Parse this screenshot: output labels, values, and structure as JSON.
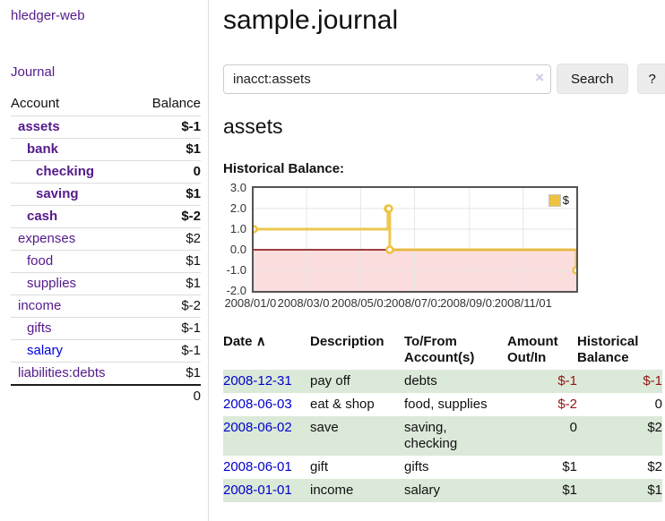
{
  "sidebar": {
    "app_title": "hledger-web",
    "journal_label": "Journal",
    "accounts_table": {
      "headers": [
        "Account",
        "Balance"
      ],
      "rows": [
        {
          "account": "assets",
          "balance": "$-1",
          "indent": 1,
          "bold": true,
          "tone": "neg"
        },
        {
          "account": "bank",
          "balance": "$1",
          "indent": 2,
          "bold": true,
          "tone": ""
        },
        {
          "account": "checking",
          "balance": "0",
          "indent": 3,
          "bold": true,
          "tone": ""
        },
        {
          "account": "saving",
          "balance": "$1",
          "indent": 3,
          "bold": true,
          "tone": ""
        },
        {
          "account": "cash",
          "balance": "$-2",
          "indent": 2,
          "bold": true,
          "tone": "neg"
        },
        {
          "account": "expenses",
          "balance": "$2",
          "indent": 1,
          "bold": false,
          "tone": ""
        },
        {
          "account": "food",
          "balance": "$1",
          "indent": 2,
          "bold": false,
          "tone": ""
        },
        {
          "account": "supplies",
          "balance": "$1",
          "indent": 2,
          "bold": false,
          "tone": ""
        },
        {
          "account": "income",
          "balance": "$-2",
          "indent": 1,
          "bold": false,
          "tone": "rose"
        },
        {
          "account": "gifts",
          "balance": "$-1",
          "indent": 2,
          "bold": false,
          "tone": "rose"
        },
        {
          "account": "salary",
          "balance": "$-1",
          "indent": 2,
          "bold": false,
          "tone": "rose",
          "link_color": "blue"
        },
        {
          "account": "liabilities:debts",
          "balance": "$1",
          "indent": 1,
          "bold": false,
          "tone": ""
        }
      ],
      "total": "0"
    }
  },
  "main": {
    "title": "sample.journal",
    "search": {
      "value": "inacct:assets",
      "clear_icon": "×",
      "button_label": "Search",
      "help_label": "?"
    },
    "account_heading": "assets",
    "chart_label": "Historical Balance:"
  },
  "chart_data": {
    "type": "line",
    "step": true,
    "title": "Historical Balance:",
    "series": [
      {
        "name": "$",
        "color": "#edc240",
        "points": [
          {
            "date": "2008-01-01",
            "value": 1
          },
          {
            "date": "2008-06-01",
            "value": 2
          },
          {
            "date": "2008-06-02",
            "value": 2
          },
          {
            "date": "2008-06-03",
            "value": 0
          },
          {
            "date": "2008-12-31",
            "value": -1
          }
        ]
      }
    ],
    "x_range": [
      "2008-01-01",
      "2008-12-31"
    ],
    "y_range": [
      -2,
      3
    ],
    "y_ticks": [
      3.0,
      2.0,
      1.0,
      0.0,
      -1.0,
      -2.0
    ],
    "x_ticks": [
      "2008/01/01",
      "2008/03/01",
      "2008/05/01",
      "2008/07/01",
      "2008/09/01",
      "2008/11/01"
    ],
    "legend": {
      "label": "$",
      "position": "top-right"
    },
    "grid": true,
    "grid_color": "#e6e6e6",
    "negative_region_color": "#fcdddd",
    "zero_line_color": "#7d0505",
    "border_color": "#545454"
  },
  "register_table": {
    "headers": [
      {
        "key": "date",
        "line1": "Date",
        "sort_icon": "∧",
        "sortable": true
      },
      {
        "key": "description",
        "line1": "Description"
      },
      {
        "key": "accounts",
        "line1": "To/From",
        "line2": "Account(s)"
      },
      {
        "key": "amount",
        "line1": "Amount",
        "line2": "Out/In"
      },
      {
        "key": "balance",
        "line1": "Historical",
        "line2": "Balance"
      }
    ],
    "rows": [
      {
        "date": "2008-12-31",
        "description": "pay off",
        "accounts": "debts",
        "amount": "$-1",
        "balance": "$-1",
        "amount_negative": true,
        "balance_negative": true
      },
      {
        "date": "2008-06-03",
        "description": "eat & shop",
        "accounts": "food, supplies",
        "amount": "$-2",
        "balance": "0",
        "amount_negative": true,
        "balance_negative": false
      },
      {
        "date": "2008-06-02",
        "description": "save",
        "accounts": "saving,\nchecking",
        "amount": "0",
        "balance": "$2",
        "amount_negative": false,
        "balance_negative": false
      },
      {
        "date": "2008-06-01",
        "description": "gift",
        "accounts": "gifts",
        "amount": "$1",
        "balance": "$2",
        "amount_negative": false,
        "balance_negative": false
      },
      {
        "date": "2008-01-01",
        "description": "income",
        "accounts": "salary",
        "amount": "$1",
        "balance": "$1",
        "amount_negative": false,
        "balance_negative": false
      }
    ]
  }
}
